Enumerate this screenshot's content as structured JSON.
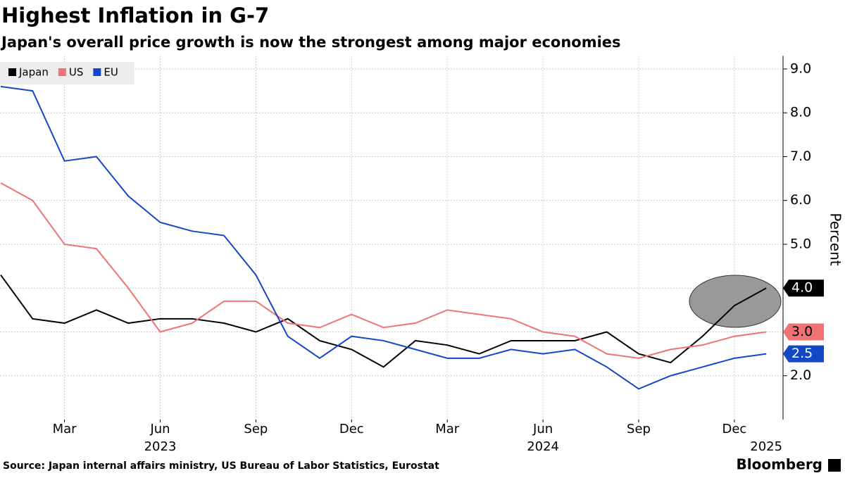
{
  "chart_data": {
    "type": "line",
    "title": "Highest Inflation in G-7",
    "subtitle": "Japan's overall price growth is now the strongest among major economies",
    "y_label": "Percent",
    "source": "Source: Japan internal affairs ministry, US Bureau of Labor Statistics, Eurostat",
    "brand": "Bloomberg",
    "categories": [
      null,
      null,
      "Mar",
      null,
      null,
      "Jun",
      null,
      null,
      "Sep",
      null,
      null,
      "Dec",
      null,
      null,
      "Mar",
      null,
      null,
      "Jun",
      null,
      null,
      "Sep",
      null,
      null,
      "Dec",
      null
    ],
    "year_labels": [
      null,
      null,
      null,
      null,
      null,
      "2023",
      null,
      null,
      null,
      null,
      null,
      null,
      null,
      null,
      null,
      null,
      null,
      "2024",
      null,
      null,
      null,
      null,
      null,
      null,
      "2025"
    ],
    "series": [
      {
        "name": "Japan",
        "color": "#000000",
        "values": [
          4.3,
          3.3,
          3.2,
          3.5,
          3.2,
          3.3,
          3.3,
          3.2,
          3.0,
          3.3,
          2.8,
          2.6,
          2.2,
          2.8,
          2.7,
          2.5,
          2.8,
          2.8,
          2.8,
          3.0,
          2.5,
          2.3,
          2.9,
          3.6,
          4.0
        ],
        "value_labels": [
          null,
          null,
          null,
          null,
          null,
          null,
          null,
          null,
          null,
          null,
          null,
          null,
          null,
          null,
          null,
          null,
          null,
          null,
          null,
          null,
          null,
          null,
          null,
          null,
          "4.0"
        ]
      },
      {
        "name": "US",
        "color": "#f07272",
        "values": [
          6.4,
          6.0,
          5.0,
          4.9,
          4.0,
          3.0,
          3.2,
          3.7,
          3.7,
          3.2,
          3.1,
          3.4,
          3.1,
          3.2,
          3.5,
          3.4,
          3.3,
          3.0,
          2.9,
          2.5,
          2.4,
          2.6,
          2.7,
          2.9,
          3.0
        ],
        "value_labels": [
          null,
          null,
          null,
          null,
          null,
          null,
          null,
          null,
          null,
          null,
          null,
          null,
          null,
          null,
          null,
          null,
          null,
          null,
          null,
          null,
          null,
          null,
          null,
          null,
          "3.0"
        ]
      },
      {
        "name": "EU",
        "color": "#1446c8",
        "values": [
          8.6,
          8.5,
          6.9,
          7.0,
          6.1,
          5.5,
          5.3,
          5.2,
          4.3,
          2.9,
          2.4,
          2.9,
          2.8,
          2.6,
          2.4,
          2.4,
          2.6,
          2.5,
          2.6,
          2.2,
          1.7,
          2.0,
          2.2,
          2.4,
          2.5
        ],
        "value_labels": [
          null,
          null,
          null,
          null,
          null,
          null,
          null,
          null,
          null,
          null,
          null,
          null,
          null,
          null,
          null,
          null,
          null,
          null,
          null,
          null,
          null,
          null,
          null,
          null,
          "2.5"
        ]
      }
    ],
    "ylim": [
      1.0,
      9.3
    ],
    "yticks": [
      {
        "value": 2,
        "label": "2.0"
      },
      {
        "value": 3,
        "label": "3.0"
      },
      {
        "value": 4,
        "label": "4.0"
      },
      {
        "value": 5,
        "label": "5.0"
      },
      {
        "value": 6,
        "label": "6.0"
      },
      {
        "value": 7,
        "label": "7.0"
      },
      {
        "value": 8,
        "label": "8.0"
      },
      {
        "value": 9,
        "label": "9.0"
      }
    ],
    "grid": true,
    "legend": "top-left"
  }
}
